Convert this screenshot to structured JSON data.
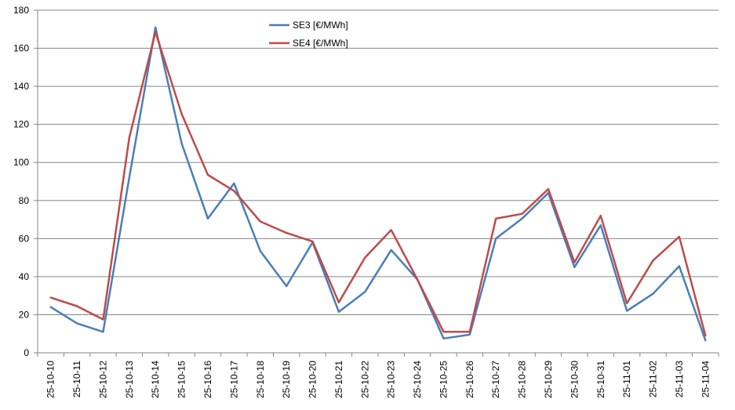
{
  "chart_data": {
    "type": "line",
    "title": "",
    "xlabel": "",
    "ylabel": "",
    "ylim": [
      0,
      180
    ],
    "yticks": [
      0,
      20,
      40,
      60,
      80,
      100,
      120,
      140,
      160,
      180
    ],
    "grid": true,
    "legend_position": "top-center",
    "categories": [
      "25-10-10",
      "25-10-11",
      "25-10-12",
      "25-10-13",
      "25-10-14",
      "25-10-15",
      "25-10-16",
      "25-10-17",
      "25-10-18",
      "25-10-19",
      "25-10-20",
      "25-10-21",
      "25-10-22",
      "25-10-23",
      "25-10-24",
      "25-10-25",
      "25-10-26",
      "25-10-27",
      "25-10-28",
      "25-10-29",
      "25-10-30",
      "25-10-31",
      "25-11-01",
      "25-11-02",
      "25-11-03",
      "25-11-04"
    ],
    "series": [
      {
        "name": "SE3 [€/MWh]",
        "color": "#4a7ebb",
        "values": [
          24,
          15.5,
          11,
          92,
          171,
          110,
          70.5,
          89,
          53.5,
          35,
          58,
          21.5,
          32,
          54,
          38.5,
          7.5,
          9.5,
          60,
          70.5,
          84,
          45,
          67,
          22,
          31,
          45.5,
          6.5
        ]
      },
      {
        "name": "SE4 [€/MWh]",
        "color": "#be4b48",
        "values": [
          29,
          24.5,
          17.5,
          113,
          168.5,
          125.5,
          93.5,
          85,
          69,
          63,
          58.5,
          26.5,
          50,
          64.5,
          38.5,
          11,
          11,
          70.5,
          73,
          86,
          47.5,
          72,
          26,
          48.5,
          61,
          9
        ]
      }
    ]
  }
}
